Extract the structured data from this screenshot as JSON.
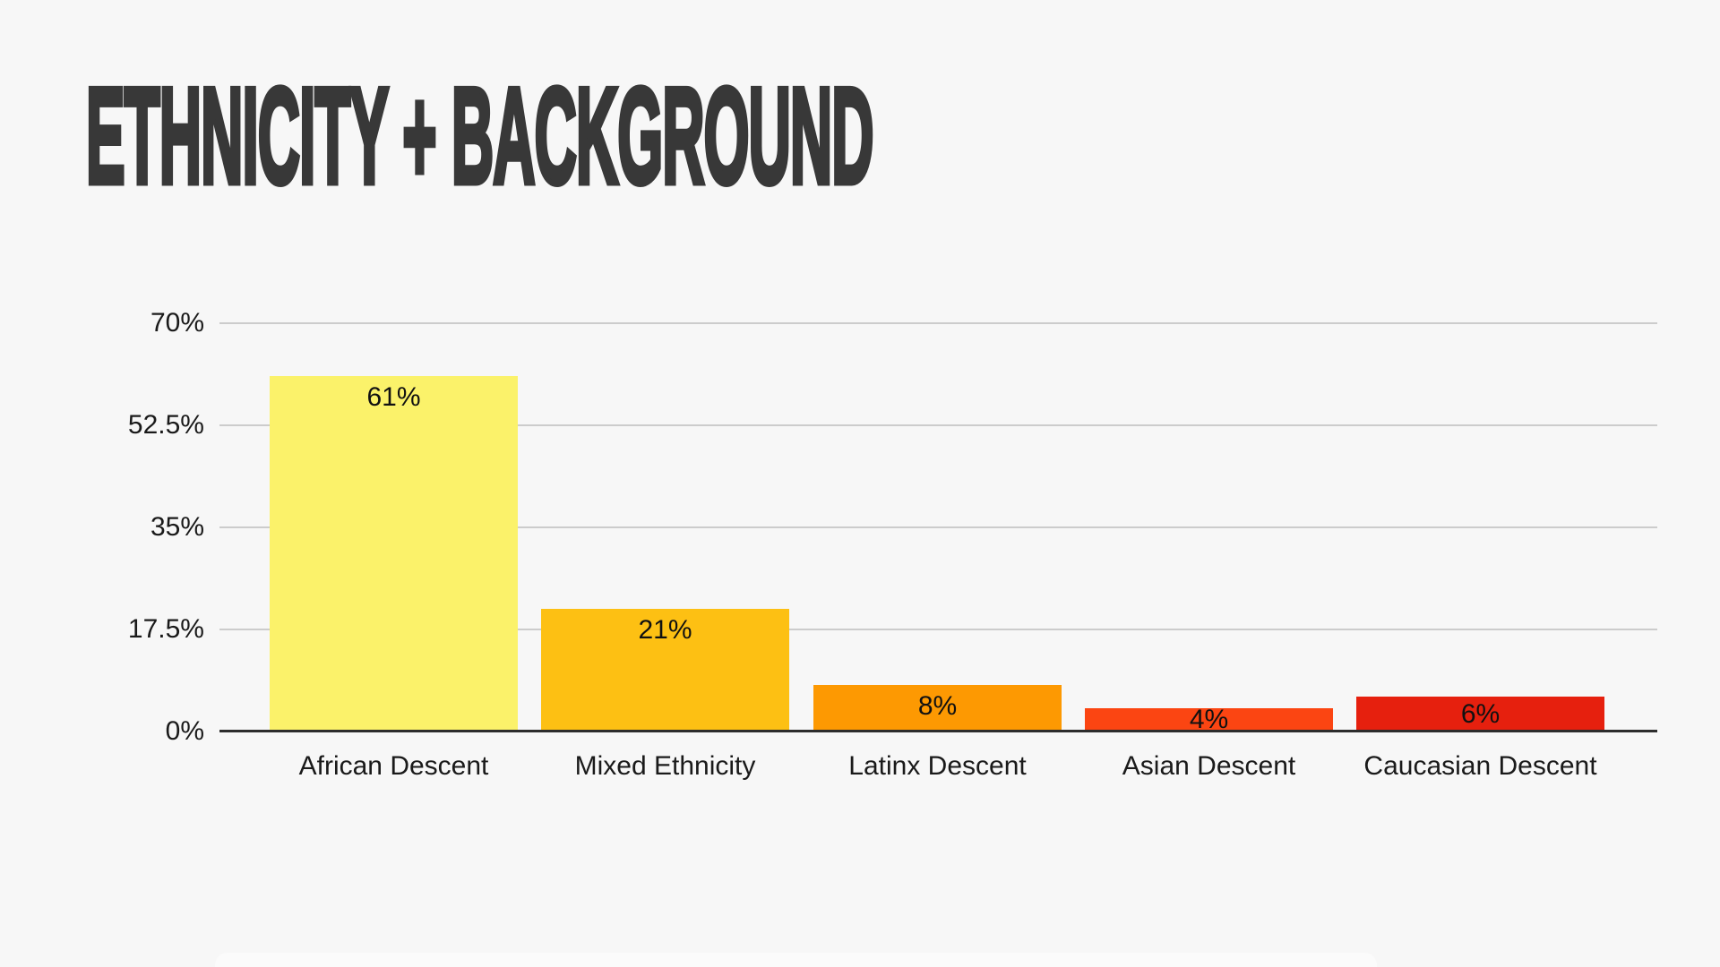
{
  "title": "ETHNICITY + BACKGROUND",
  "theme": {
    "background": "#f7f7f7",
    "title_color": "#383838",
    "grid_color": "#cccccc",
    "axis_color": "#2d2d2d",
    "tick_label_color": "#1a1a1a",
    "value_label_color": "#111111",
    "bottom_strip_color": "#fbfbfb"
  },
  "chart_data": {
    "type": "bar",
    "title": "ETHNICITY + BACKGROUND",
    "categories": [
      "African Descent",
      "Mixed Ethnicity",
      "Latinx Descent",
      "Asian Descent",
      "Caucasian Descent"
    ],
    "values": [
      61,
      21,
      8,
      4,
      6
    ],
    "value_labels": [
      "61%",
      "21%",
      "8%",
      "4%",
      "6%"
    ],
    "bar_colors": [
      "#FBF26A",
      "#FDC013",
      "#FD9902",
      "#FB4512",
      "#E6200E"
    ],
    "xlabel": "",
    "ylabel": "",
    "ylim": [
      0,
      70
    ],
    "ytick_labels": [
      "70%",
      "52.5%",
      "35%",
      "17.5%",
      "0%"
    ],
    "ytick_values": [
      70,
      52.5,
      35,
      17.5,
      0
    ],
    "grid": true,
    "legend": false,
    "legend_position": "none",
    "value_label_position": "inside-top"
  }
}
